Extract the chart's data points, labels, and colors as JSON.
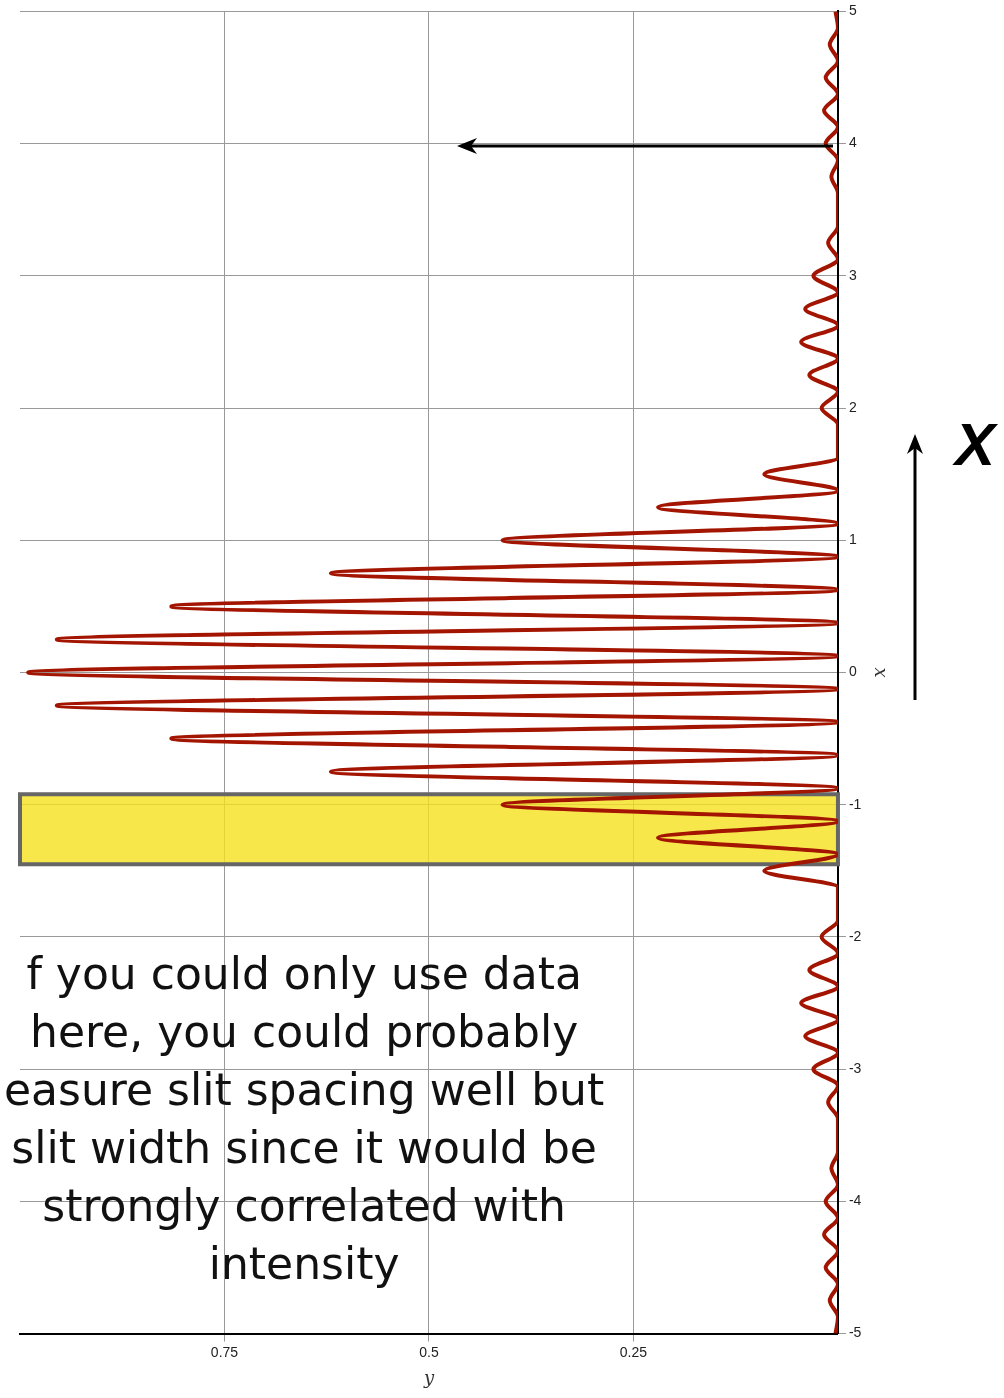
{
  "chart_data": {
    "type": "line",
    "orientation": "horizontal",
    "xlabel": "y",
    "ylabel": "x",
    "x": [
      -5,
      -4.875,
      -4.75,
      -4.625,
      -4.5,
      -4.375,
      -4.25,
      -4.125,
      -4,
      -3.875,
      -3.75,
      -3.625,
      -3.5,
      -3.375,
      -3.25,
      -3.125,
      -3,
      -2.875,
      -2.75,
      -2.625,
      -2.5,
      -2.375,
      -2.25,
      -2.125,
      -2,
      -1.875,
      -1.75,
      -1.625,
      -1.5,
      -1.375,
      -1.25,
      -1.125,
      -1,
      -0.875,
      -0.75,
      -0.625,
      -0.5,
      -0.375,
      -0.25,
      -0.125,
      0,
      0.125,
      0.25,
      0.375,
      0.5,
      0.625,
      0.75,
      0.875,
      1,
      1.125,
      1.25,
      1.375,
      1.5,
      1.625,
      1.75,
      1.875,
      2,
      2.125,
      2.25,
      2.375,
      2.5,
      2.625,
      2.75,
      2.875,
      3,
      3.125,
      3.25,
      3.375,
      3.5,
      3.625,
      3.75,
      3.875,
      4,
      4.125,
      4.25,
      4.375,
      4.5,
      4.625,
      4.75,
      4.875,
      5
    ],
    "series": [
      {
        "color": "#a31500",
        "values": [
          0.003,
          0,
          0.01,
          0,
          0.015,
          0,
          0.017,
          0,
          0.015,
          0,
          0.008,
          0,
          0,
          0,
          0.012,
          0,
          0.03,
          0,
          0.04,
          0,
          0.045,
          0,
          0.035,
          0,
          0.02,
          0,
          0,
          0,
          0.09,
          0,
          0.22,
          0,
          0.41,
          0,
          0.62,
          0,
          0.815,
          0,
          0.955,
          0,
          0.99,
          0,
          0.955,
          0,
          0.815,
          0,
          0.62,
          0,
          0.41,
          0,
          0.22,
          0,
          0.09,
          0,
          0,
          0,
          0.02,
          0,
          0.035,
          0,
          0.045,
          0,
          0.04,
          0,
          0.03,
          0,
          0.012,
          0,
          0,
          0,
          0.008,
          0,
          0.015,
          0,
          0.017,
          0,
          0.015,
          0,
          0.01,
          0,
          0.003
        ]
      }
    ],
    "xlim": [
      1,
      0
    ],
    "xticks": [
      0.25,
      0.5,
      0.75
    ],
    "ylim": [
      -5,
      5
    ],
    "yticks": [
      -5,
      -4,
      -3,
      -2,
      -1,
      0,
      1,
      2,
      3,
      4,
      5
    ],
    "grid": true,
    "legend": false,
    "bands": [
      {
        "axis": "y",
        "from": -1.45,
        "to": -0.92,
        "color": "#f5e11e"
      }
    ],
    "annotations": [
      "X",
      "f you could only use data\nhere, you could probably\neasure slit spacing well but\nslit width since it would be\nstrongly correlated with\nintensity"
    ]
  }
}
